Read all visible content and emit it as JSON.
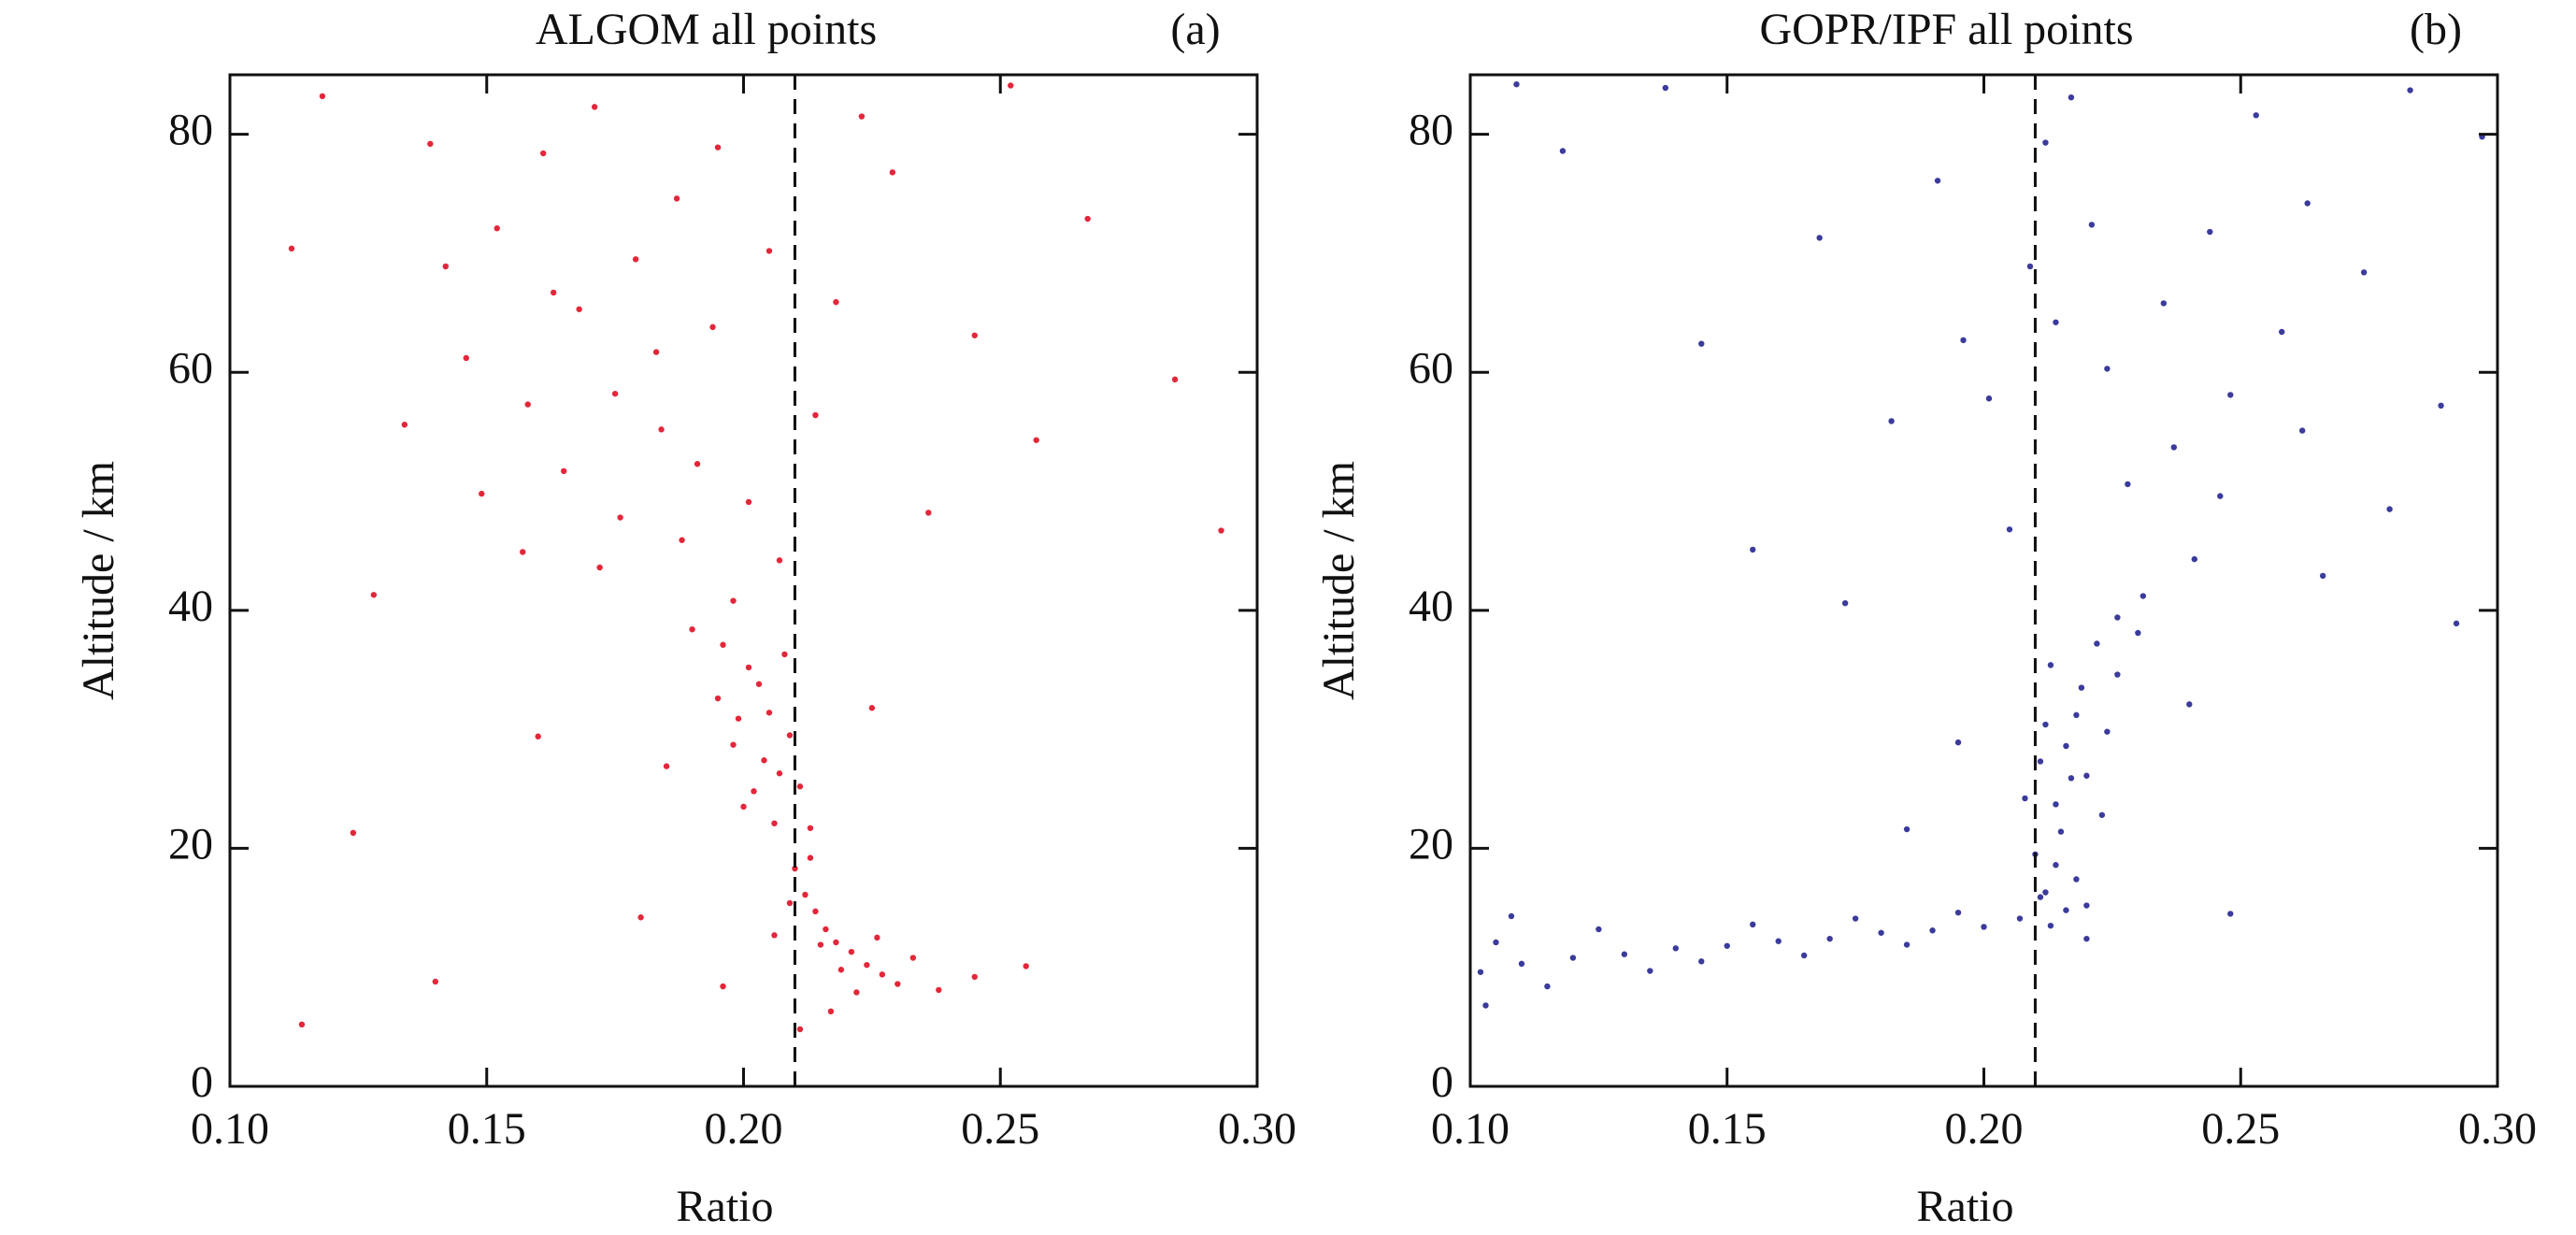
{
  "chart_data": [
    {
      "type": "scatter",
      "title": "ALGOM all points",
      "panel_label": "(a)",
      "x_label": "Ratio",
      "y_label": "Altitude / km",
      "color": "#e3273a",
      "vline": 0.21,
      "xlim": [
        0.1,
        0.3
      ],
      "ylim": [
        0,
        85
      ],
      "xticks": [
        {
          "value": 0.1,
          "label": "0.10"
        },
        0.15,
        {
          "value": 0.2,
          "label": "0.20"
        },
        0.25,
        {
          "value": 0.3,
          "label": "0.30"
        }
      ],
      "yticks": [
        0,
        20,
        40,
        60,
        80
      ],
      "x": [
        0.152,
        0.168,
        0.175,
        0.183,
        0.161,
        0.142,
        0.191,
        0.176,
        0.205,
        0.223,
        0.245,
        0.134,
        0.118,
        0.157,
        0.187,
        0.198,
        0.171,
        0.214,
        0.236,
        0.267,
        0.284,
        0.128,
        0.146,
        0.165,
        0.179,
        0.194,
        0.158,
        0.172,
        0.188,
        0.201,
        0.229,
        0.252,
        0.112,
        0.139,
        0.163,
        0.184,
        0.195,
        0.207,
        0.218,
        0.293,
        0.257,
        0.149,
        0.201,
        0.205,
        0.198,
        0.207,
        0.203,
        0.196,
        0.209,
        0.202,
        0.206,
        0.199,
        0.204,
        0.211,
        0.195,
        0.208,
        0.19,
        0.213,
        0.2,
        0.185,
        0.225,
        0.16,
        0.21,
        0.212,
        0.214,
        0.216,
        0.218,
        0.221,
        0.224,
        0.227,
        0.23,
        0.219,
        0.222,
        0.215,
        0.209,
        0.213,
        0.226,
        0.233,
        0.238,
        0.217,
        0.211,
        0.245,
        0.206,
        0.196,
        0.18,
        0.124,
        0.114,
        0.14,
        0.255
      ],
      "values": [
        72.1,
        65.3,
        58.2,
        61.7,
        78.4,
        68.9,
        52.3,
        47.8,
        70.2,
        81.5,
        63.1,
        55.6,
        83.2,
        44.9,
        74.6,
        40.8,
        82.3,
        56.4,
        48.2,
        72.9,
        59.4,
        41.3,
        61.2,
        51.7,
        69.5,
        63.8,
        57.3,
        43.6,
        45.9,
        49.1,
        76.8,
        84.1,
        70.4,
        79.2,
        66.7,
        55.2,
        78.9,
        44.2,
        65.9,
        46.7,
        54.3,
        49.8,
        35.2,
        31.4,
        28.7,
        26.3,
        33.8,
        37.1,
        29.5,
        24.8,
        22.1,
        30.9,
        27.4,
        25.2,
        32.6,
        36.3,
        38.4,
        21.7,
        23.5,
        26.9,
        31.8,
        29.4,
        18.3,
        16.1,
        14.7,
        13.2,
        12.1,
        11.3,
        10.2,
        9.4,
        8.6,
        9.8,
        7.9,
        11.9,
        15.4,
        19.2,
        12.5,
        10.8,
        8.1,
        6.3,
        4.8,
        9.2,
        12.7,
        8.4,
        14.2,
        21.3,
        5.2,
        8.8,
        10.1
      ]
    },
    {
      "type": "scatter",
      "title": "GOPR/IPF all points",
      "panel_label": "(b)",
      "x_label": "Ratio",
      "y_label": "Altitude / km",
      "color": "#3b3b9c",
      "vline": 0.21,
      "xlim": [
        0.1,
        0.3
      ],
      "ylim": [
        0,
        85
      ],
      "xticks": [
        {
          "value": 0.1,
          "label": "0.10"
        },
        0.15,
        {
          "value": 0.2,
          "label": "0.20"
        },
        0.25,
        {
          "value": 0.3,
          "label": "0.30"
        }
      ],
      "yticks": [
        0,
        20,
        40,
        60,
        80
      ],
      "x": [
        0.221,
        0.235,
        0.248,
        0.212,
        0.196,
        0.263,
        0.228,
        0.241,
        0.182,
        0.274,
        0.289,
        0.205,
        0.217,
        0.253,
        0.168,
        0.231,
        0.279,
        0.297,
        0.145,
        0.118,
        0.109,
        0.224,
        0.237,
        0.209,
        0.258,
        0.191,
        0.244,
        0.266,
        0.155,
        0.173,
        0.283,
        0.226,
        0.201,
        0.246,
        0.214,
        0.262,
        0.138,
        0.292,
        0.213,
        0.218,
        0.216,
        0.22,
        0.214,
        0.219,
        0.222,
        0.215,
        0.217,
        0.224,
        0.212,
        0.226,
        0.211,
        0.223,
        0.23,
        0.208,
        0.24,
        0.195,
        0.185,
        0.214,
        0.212,
        0.216,
        0.211,
        0.218,
        0.213,
        0.21,
        0.22,
        0.207,
        0.2,
        0.19,
        0.18,
        0.17,
        0.16,
        0.15,
        0.14,
        0.13,
        0.12,
        0.11,
        0.102,
        0.105,
        0.115,
        0.125,
        0.135,
        0.145,
        0.155,
        0.165,
        0.175,
        0.185,
        0.195,
        0.103,
        0.108,
        0.22,
        0.248
      ],
      "values": [
        72.4,
        65.8,
        58.1,
        79.3,
        62.7,
        74.2,
        50.6,
        44.3,
        55.9,
        68.4,
        57.2,
        46.8,
        83.1,
        81.6,
        71.3,
        41.2,
        48.5,
        79.8,
        62.4,
        78.6,
        84.2,
        60.3,
        53.7,
        68.9,
        63.4,
        76.1,
        71.8,
        42.9,
        45.1,
        40.6,
        83.7,
        39.4,
        57.8,
        49.6,
        64.2,
        55.1,
        83.9,
        38.9,
        35.4,
        31.2,
        28.6,
        26.1,
        23.7,
        33.5,
        37.2,
        21.4,
        25.9,
        29.8,
        30.4,
        34.6,
        27.3,
        22.8,
        38.1,
        24.2,
        32.1,
        28.9,
        21.6,
        18.6,
        16.3,
        14.8,
        15.9,
        17.4,
        13.5,
        19.5,
        15.2,
        14.1,
        13.4,
        13.1,
        12.9,
        12.4,
        12.2,
        11.8,
        11.6,
        11.1,
        10.8,
        10.3,
        9.6,
        12.1,
        8.4,
        13.2,
        9.7,
        10.5,
        13.6,
        11.0,
        14.1,
        11.9,
        14.6,
        6.8,
        14.3,
        12.4,
        14.5
      ]
    }
  ]
}
